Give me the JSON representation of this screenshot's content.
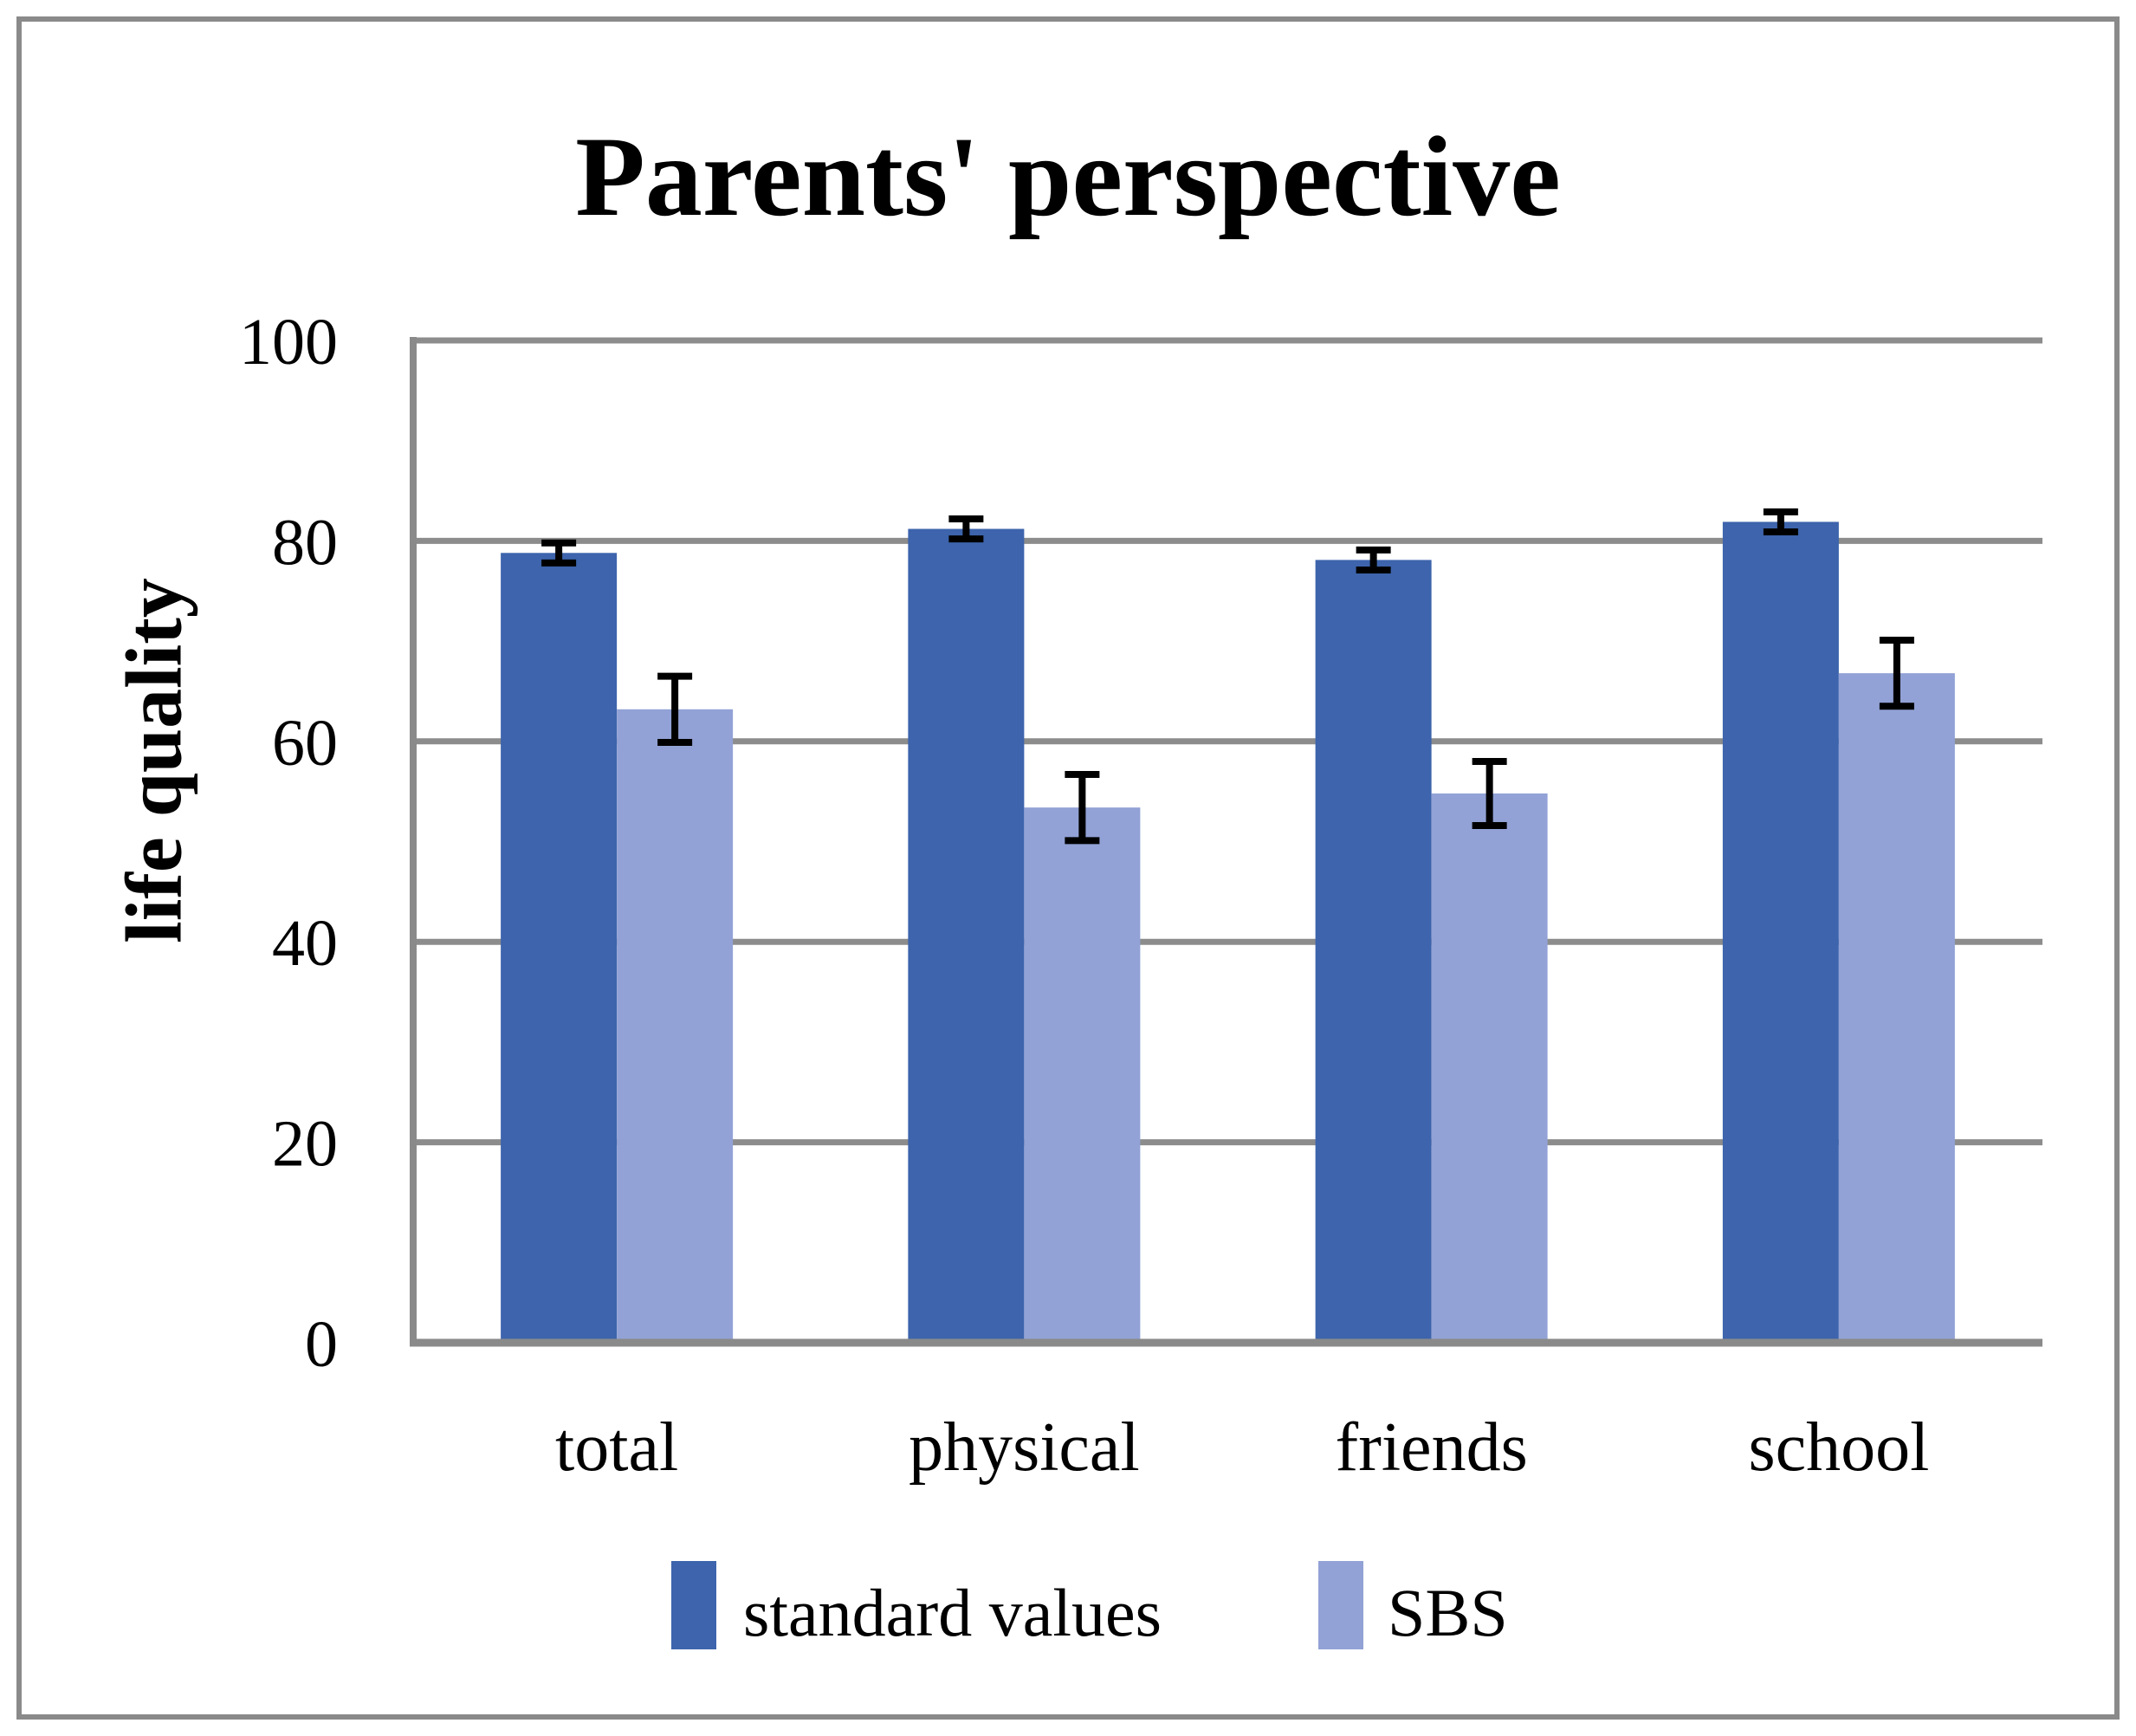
{
  "figure": {
    "background": "#ffffff",
    "border_color": "#8a8a8a"
  },
  "chart_data": {
    "type": "bar",
    "title": "Parents' perspective",
    "xlabel": "",
    "ylabel": "life quality",
    "categories": [
      "total",
      "physical",
      "friends",
      "school"
    ],
    "series": [
      {
        "name": "standard values",
        "color": "#3d64ac",
        "values": [
          78.8,
          81.2,
          78.1,
          81.9
        ],
        "errors": [
          1.0,
          1.0,
          1.0,
          1.0
        ]
      },
      {
        "name": "SBS",
        "color": "#92a2d6",
        "values": [
          63.2,
          53.4,
          54.8,
          66.8
        ],
        "errors": [
          3.3,
          3.3,
          3.2,
          3.3
        ]
      }
    ],
    "ylim": [
      0,
      100
    ],
    "yticks": [
      0,
      20,
      40,
      60,
      80,
      100
    ],
    "grid": true,
    "gridline_color": "#8c8c8c",
    "axis_color": "#8a8a8a",
    "error_bar_color": "#000000",
    "legend_position": "bottom"
  }
}
